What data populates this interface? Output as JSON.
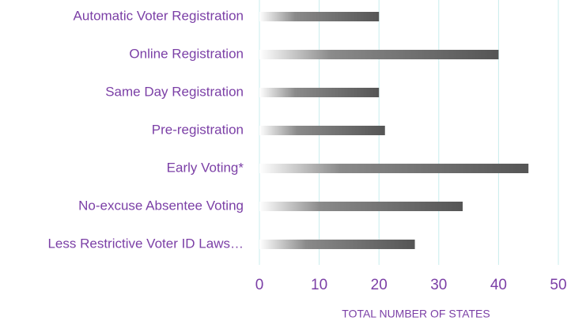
{
  "chart_data": {
    "type": "barh",
    "categories": [
      "Automatic Voter Registration",
      "Online Registration",
      "Same Day Registration",
      "Pre-registration",
      "Early Voting*",
      "No-excuse Absentee Voting",
      "Less Restrictive Voter ID Laws…"
    ],
    "values": [
      20,
      40,
      20,
      21,
      45,
      34,
      26
    ],
    "color": "#555555",
    "xlim": [
      0,
      50
    ],
    "xticks": [
      0,
      10,
      20,
      30,
      40,
      50
    ],
    "xlabel": "TOTAL NUMBER OF STATES",
    "grid": true
  }
}
